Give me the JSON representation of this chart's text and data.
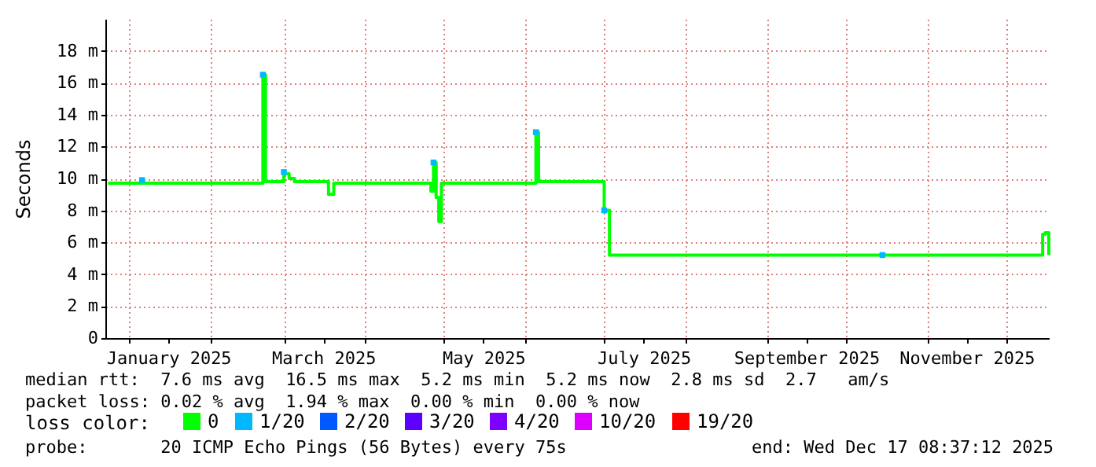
{
  "chart_data": {
    "type": "step",
    "ylabel": "Seconds",
    "legend_title": "loss color:",
    "xlim": [
      "2024-12-23",
      "2025-12-17T08:37"
    ],
    "xticks": [
      {
        "value": "2025-01-01",
        "label": null
      },
      {
        "value": "2025-01-16",
        "label": "January 2025"
      },
      {
        "value": "2025-02-01",
        "label": null
      },
      {
        "value": "2025-03-01",
        "label": null
      },
      {
        "value": "2025-03-16",
        "label": "March 2025"
      },
      {
        "value": "2025-04-01",
        "label": null
      },
      {
        "value": "2025-05-01",
        "label": null
      },
      {
        "value": "2025-05-16",
        "label": "May 2025"
      },
      {
        "value": "2025-06-01",
        "label": null
      },
      {
        "value": "2025-07-01",
        "label": null
      },
      {
        "value": "2025-07-16",
        "label": "July 2025"
      },
      {
        "value": "2025-08-01",
        "label": null
      },
      {
        "value": "2025-09-01",
        "label": null
      },
      {
        "value": "2025-09-16",
        "label": "September 2025"
      },
      {
        "value": "2025-10-01",
        "label": null
      },
      {
        "value": "2025-11-01",
        "label": null
      },
      {
        "value": "2025-11-16",
        "label": "November 2025"
      },
      {
        "value": "2025-12-01",
        "label": null
      }
    ],
    "ylim": [
      0,
      20
    ],
    "yticks": [
      0,
      {
        "value": 2,
        "label": "2 m"
      },
      {
        "value": 4,
        "label": "4 m"
      },
      {
        "value": 6,
        "label": "6 m"
      },
      {
        "value": 8,
        "label": "8 m"
      },
      {
        "value": 10,
        "label": "10 m"
      },
      {
        "value": 12,
        "label": "12 m"
      },
      {
        "value": 14,
        "label": "14 m"
      },
      {
        "value": 16,
        "label": "16 m"
      },
      {
        "value": 18,
        "label": "18 m"
      }
    ],
    "grid": true,
    "legend": "bottom",
    "series": [
      {
        "name": "0",
        "color": "#00ff00",
        "x": [
          "2024-12-24",
          "2025-01-10",
          "2025-02-20",
          "2025-02-21",
          "2025-02-22",
          "2025-03-01",
          "2025-03-03",
          "2025-03-05",
          "2025-03-18",
          "2025-03-20",
          "2025-04-26",
          "2025-04-27",
          "2025-04-28",
          "2025-04-29",
          "2025-04-30",
          "2025-06-05",
          "2025-06-06",
          "2025-07-01",
          "2025-07-03",
          "2025-09-01",
          "2025-12-15",
          "2025-12-16",
          "2025-12-17T08:37"
        ],
        "values": [
          9.7,
          9.7,
          9.7,
          16.5,
          9.8,
          10.3,
          10.0,
          9.8,
          9.0,
          9.7,
          9.2,
          11.0,
          8.8,
          7.3,
          9.7,
          12.9,
          9.8,
          8.0,
          5.2,
          5.2,
          6.5,
          6.6,
          5.2
        ]
      },
      {
        "name": "1/20",
        "color": "#00b8ff",
        "type": "scatter",
        "x": [
          "2025-01-06",
          "2025-02-21",
          "2025-03-01",
          "2025-04-27",
          "2025-06-05",
          "2025-07-01",
          "2025-10-15"
        ],
        "values": [
          9.9,
          16.5,
          10.4,
          11.0,
          12.9,
          8.0,
          5.2
        ]
      },
      {
        "name": "2/20",
        "color": "#0059ff",
        "type": "scatter"
      },
      {
        "name": "3/20",
        "color": "#5e00ff",
        "type": "scatter"
      },
      {
        "name": "4/20",
        "color": "#7e00ff",
        "type": "scatter"
      },
      {
        "name": "10/20",
        "color": "#dd00ff",
        "type": "scatter"
      },
      {
        "name": "19/20",
        "color": "#ff0000",
        "type": "scatter"
      }
    ],
    "annotations": [
      "median rtt:  7.6 ms avg  16.5 ms max  5.2 ms min  5.2 ms now  2.8 ms sd  2.7   am/s",
      "packet loss: 0.02 % avg  1.94 % max  0.00 % min  0.00 % now",
      "probe:       20 ICMP Echo Pings (56 Bytes) every 75s",
      "end: Wed Dec 17 08:37:12 2025"
    ]
  }
}
